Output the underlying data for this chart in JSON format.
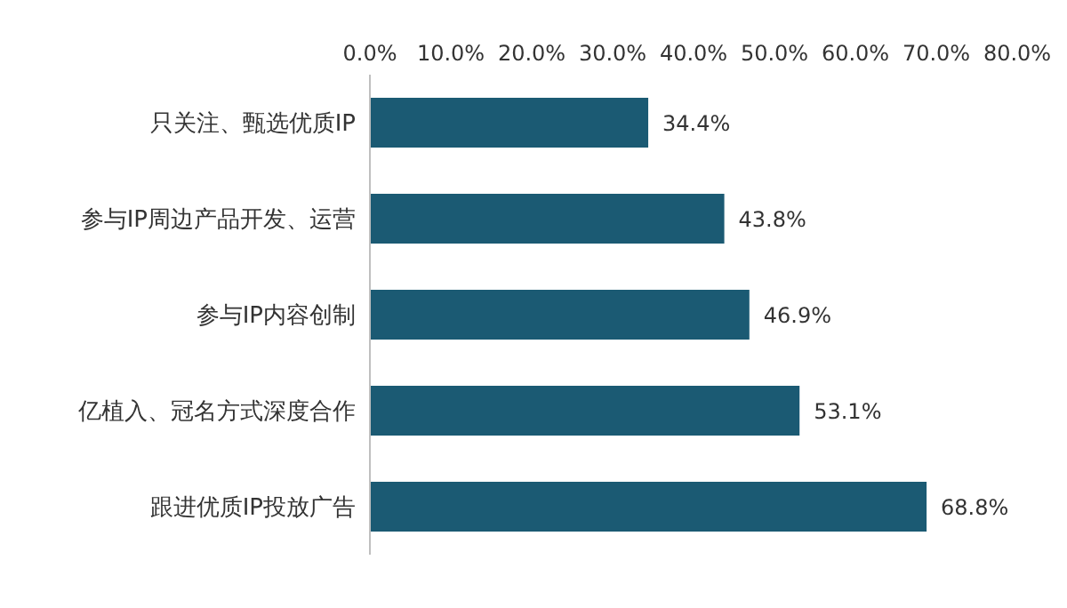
{
  "chart_data": {
    "type": "bar",
    "orientation": "horizontal",
    "categories": [
      "只关注、甄选优质IP",
      "参与IP周边产品开发、运营",
      "参与IP内容创制",
      "亿植入、冠名方式深度合作",
      "跟进优质IP投放广告"
    ],
    "values": [
      34.4,
      43.8,
      46.9,
      53.1,
      68.8
    ],
    "value_labels": [
      "34.4%",
      "43.8%",
      "46.9%",
      "53.1%",
      "68.8%"
    ],
    "color": "#1b5a73",
    "xlim": [
      0,
      80
    ],
    "xticks": [
      {
        "value": 0,
        "label": "0.0%"
      },
      {
        "value": 10,
        "label": "10.0%"
      },
      {
        "value": 20,
        "label": "20.0%"
      },
      {
        "value": 30,
        "label": "30.0%"
      },
      {
        "value": 40,
        "label": "40.0%"
      },
      {
        "value": 50,
        "label": "50.0%"
      },
      {
        "value": 60,
        "label": "60.0%"
      },
      {
        "value": 70,
        "label": "70.0%"
      },
      {
        "value": 80,
        "label": "80.0%"
      }
    ],
    "grid": false,
    "legend": false
  }
}
